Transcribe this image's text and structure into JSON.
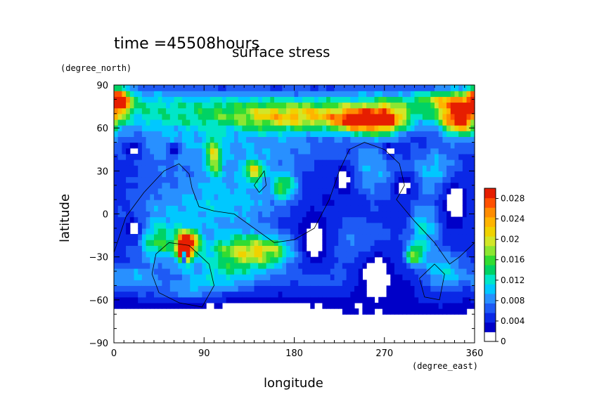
{
  "header": {
    "time_label": "time =45508hours",
    "title": "surface stress"
  },
  "chart_data": {
    "type": "heatmap",
    "title": "surface stress",
    "xlabel": "longitude",
    "ylabel": "latitude",
    "x_units": "(degree_east)",
    "y_units": "(degree_north)",
    "xlim": [
      0,
      360
    ],
    "ylim": [
      -90,
      90
    ],
    "x_ticks": [
      "0",
      "90",
      "180",
      "270",
      "360"
    ],
    "y_ticks": [
      "90",
      "60",
      "30",
      "0",
      "−30",
      "−60",
      "−90"
    ],
    "colorbar": {
      "range": [
        0,
        0.03
      ],
      "tick_labels": [
        "0",
        "0.004",
        "0.008",
        "0.012",
        "0.016",
        "0.02",
        "0.024",
        "0.028"
      ],
      "colors": [
        "#ffffff",
        "#0000c8",
        "#0a28e6",
        "#1e5af5",
        "#2890ff",
        "#00c8ff",
        "#00e6c8",
        "#00d264",
        "#32dc32",
        "#8ce632",
        "#d2e628",
        "#f0d200",
        "#ffb400",
        "#ff8c00",
        "#ff5000",
        "#e61e00"
      ]
    },
    "blobs": [
      {
        "lon": 0,
        "lat": 75,
        "v": 0.01,
        "r": [
          360,
          14
        ]
      },
      {
        "lon": 180,
        "lat": 68,
        "v": 0.014,
        "r": [
          70,
          10
        ]
      },
      {
        "lon": 270,
        "lat": 66,
        "v": 0.022,
        "r": [
          20,
          10
        ]
      },
      {
        "lon": 345,
        "lat": 68,
        "v": 0.024,
        "r": [
          18,
          12
        ]
      },
      {
        "lon": 5,
        "lat": 80,
        "v": 0.022,
        "r": [
          12,
          8
        ]
      },
      {
        "lon": 240,
        "lat": 65,
        "v": 0.018,
        "r": [
          20,
          8
        ]
      },
      {
        "lon": 330,
        "lat": 80,
        "v": 0.008,
        "r": [
          30,
          6
        ]
      },
      {
        "lon": 60,
        "lat": 50,
        "v": 0.005,
        "r": [
          60,
          18
        ]
      },
      {
        "lon": 160,
        "lat": 45,
        "v": 0.005,
        "r": [
          70,
          16
        ]
      },
      {
        "lon": 100,
        "lat": 40,
        "v": 0.012,
        "r": [
          8,
          14
        ]
      },
      {
        "lon": 140,
        "lat": 30,
        "v": 0.014,
        "r": [
          10,
          7
        ]
      },
      {
        "lon": 170,
        "lat": 20,
        "v": 0.011,
        "r": [
          12,
          9
        ]
      },
      {
        "lon": 130,
        "lat": 10,
        "v": 0.006,
        "r": [
          50,
          22
        ]
      },
      {
        "lon": 60,
        "lat": 0,
        "v": 0.006,
        "r": [
          55,
          30
        ]
      },
      {
        "lon": 75,
        "lat": -20,
        "v": 0.02,
        "r": [
          10,
          8
        ]
      },
      {
        "lon": 70,
        "lat": -25,
        "v": 0.028,
        "r": [
          7,
          9
        ]
      },
      {
        "lon": 150,
        "lat": -25,
        "v": 0.012,
        "r": [
          45,
          10
        ]
      },
      {
        "lon": 130,
        "lat": -30,
        "v": 0.008,
        "r": [
          40,
          15
        ]
      },
      {
        "lon": 45,
        "lat": -20,
        "v": 0.009,
        "r": [
          20,
          12
        ]
      },
      {
        "lon": 300,
        "lat": -28,
        "v": 0.014,
        "r": [
          8,
          7
        ]
      },
      {
        "lon": 310,
        "lat": -10,
        "v": 0.008,
        "r": [
          15,
          18
        ]
      },
      {
        "lon": 330,
        "lat": -40,
        "v": 0.008,
        "r": [
          22,
          14
        ]
      },
      {
        "lon": 240,
        "lat": -20,
        "v": 0.005,
        "r": [
          45,
          20
        ]
      },
      {
        "lon": 260,
        "lat": 30,
        "v": 0.006,
        "r": [
          25,
          20
        ]
      },
      {
        "lon": 320,
        "lat": 30,
        "v": 0.007,
        "r": [
          25,
          18
        ]
      },
      {
        "lon": 20,
        "lat": -45,
        "v": 0.006,
        "r": [
          25,
          10
        ]
      },
      {
        "lon": 100,
        "lat": -45,
        "v": 0.006,
        "r": [
          40,
          12
        ]
      },
      {
        "lon": 200,
        "lat": -45,
        "v": 0.004,
        "r": [
          40,
          10
        ]
      },
      {
        "lon": 70,
        "lat": -55,
        "v": 0.004,
        "r": [
          30,
          8
        ]
      }
    ],
    "holes": [
      {
        "lon": 20,
        "lat": 45,
        "r": [
          10,
          8
        ]
      },
      {
        "lon": 60,
        "lat": 45,
        "r": [
          8,
          6
        ]
      },
      {
        "lon": 275,
        "lat": 45,
        "r": [
          8,
          6
        ]
      },
      {
        "lon": 230,
        "lat": 25,
        "r": [
          10,
          14
        ]
      },
      {
        "lon": 200,
        "lat": -20,
        "r": [
          30,
          30
        ]
      },
      {
        "lon": 260,
        "lat": -40,
        "r": [
          25,
          22
        ]
      },
      {
        "lon": 340,
        "lat": 10,
        "r": [
          18,
          20
        ]
      },
      {
        "lon": 290,
        "lat": 20,
        "r": [
          14,
          10
        ]
      },
      {
        "lon": 110,
        "lat": -75,
        "r": [
          150,
          18
        ]
      },
      {
        "lon": 20,
        "lat": -10,
        "r": [
          12,
          12
        ]
      },
      {
        "lon": 70,
        "lat": -30,
        "r": [
          3,
          6
        ]
      }
    ],
    "contours": [
      [
        [
          0,
          -27
        ],
        [
          12,
          -2
        ],
        [
          30,
          15
        ],
        [
          50,
          30
        ],
        [
          65,
          35
        ],
        [
          75,
          28
        ],
        [
          78,
          18
        ],
        [
          85,
          5
        ],
        [
          100,
          2
        ],
        [
          120,
          0
        ],
        [
          140,
          -10
        ],
        [
          160,
          -20
        ],
        [
          180,
          -18
        ],
        [
          200,
          -10
        ],
        [
          215,
          10
        ],
        [
          225,
          30
        ],
        [
          235,
          45
        ],
        [
          250,
          50
        ],
        [
          270,
          45
        ],
        [
          285,
          35
        ],
        [
          290,
          20
        ],
        [
          282,
          10
        ],
        [
          300,
          -5
        ],
        [
          320,
          -20
        ],
        [
          335,
          -35
        ],
        [
          345,
          -30
        ],
        [
          360,
          -20
        ]
      ],
      [
        [
          42,
          -28
        ],
        [
          55,
          -20
        ],
        [
          75,
          -22
        ],
        [
          95,
          -35
        ],
        [
          100,
          -50
        ],
        [
          88,
          -65
        ],
        [
          65,
          -62
        ],
        [
          45,
          -55
        ],
        [
          38,
          -42
        ],
        [
          42,
          -28
        ]
      ],
      [
        [
          140,
          20
        ],
        [
          150,
          30
        ],
        [
          152,
          20
        ],
        [
          145,
          15
        ],
        [
          140,
          20
        ]
      ],
      [
        [
          305,
          -45
        ],
        [
          320,
          -35
        ],
        [
          330,
          -42
        ],
        [
          325,
          -60
        ],
        [
          310,
          -58
        ],
        [
          305,
          -45
        ]
      ]
    ]
  }
}
